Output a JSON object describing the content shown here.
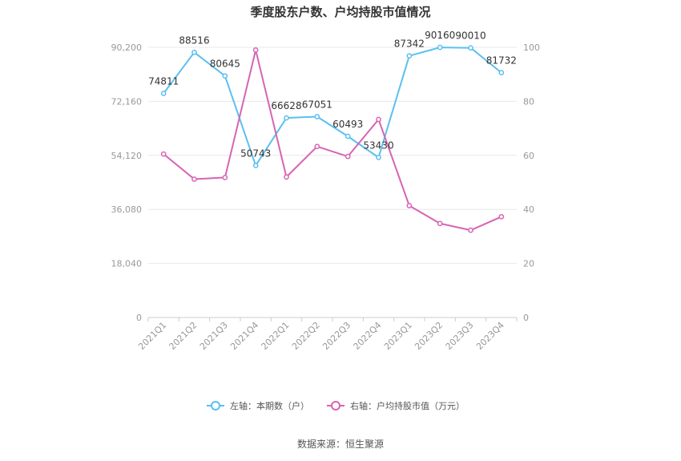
{
  "chart_data": {
    "type": "line",
    "title": "季度股东户数、户均持股市值情况",
    "categories": [
      "2021Q1",
      "2021Q2",
      "2021Q3",
      "2021Q4",
      "2022Q1",
      "2022Q2",
      "2022Q3",
      "2022Q4",
      "2023Q1",
      "2023Q2",
      "2023Q3",
      "2023Q4"
    ],
    "left_axis": {
      "min": 0,
      "max": 90200,
      "ticks": [
        "0",
        "18,040",
        "36,080",
        "54,120",
        "72,160",
        "90,200"
      ]
    },
    "right_axis": {
      "min": 0,
      "max": 100,
      "ticks": [
        "0",
        "20",
        "40",
        "60",
        "80",
        "100"
      ]
    },
    "grid": true,
    "legend_position": "bottom",
    "series": [
      {
        "name": "左轴：本期数（户）",
        "axis": "left",
        "color": "#5bc0f0",
        "values": [
          74811,
          88516,
          80645,
          50743,
          66628,
          67051,
          60493,
          53430,
          87342,
          90160,
          90010,
          81732
        ],
        "labels": [
          "74811",
          "88516",
          "80645",
          "50743",
          "66628",
          "67051",
          "60493",
          "53430",
          "87342",
          "90160",
          "90010",
          "81732"
        ]
      },
      {
        "name": "右轴：户均持股市值（万元）",
        "axis": "right",
        "color": "#d764b4",
        "values": [
          60.5,
          51.2,
          51.8,
          99.0,
          52.0,
          63.3,
          59.6,
          73.3,
          41.4,
          34.8,
          32.3,
          37.3
        ]
      }
    ]
  },
  "source": "数据来源：恒生聚源"
}
